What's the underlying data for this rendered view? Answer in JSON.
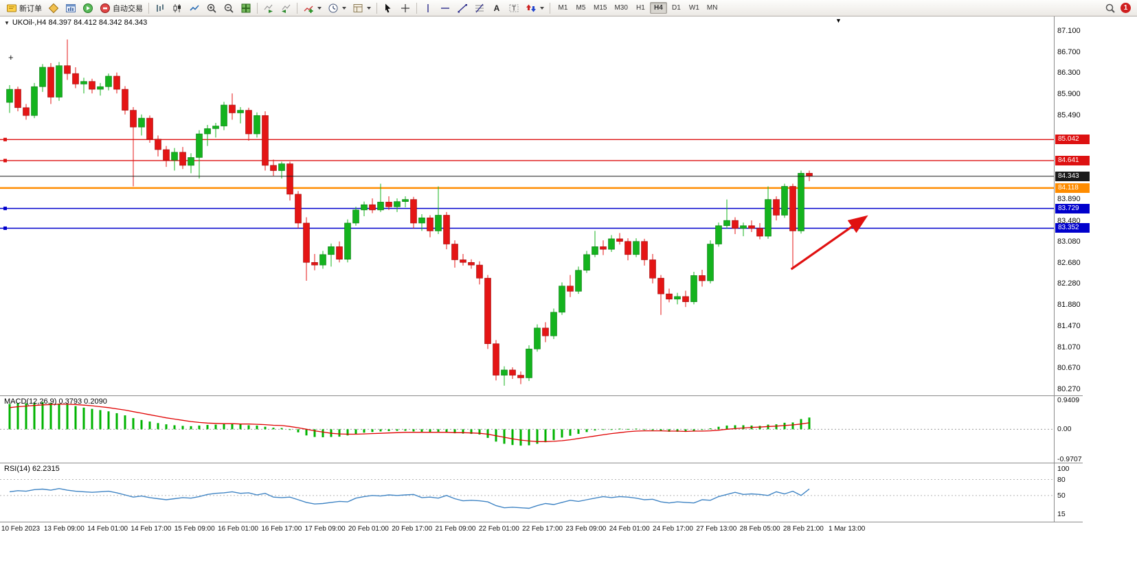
{
  "window": {
    "notification_count": "1"
  },
  "toolbar": {
    "buttons": [
      {
        "name": "new-order-button",
        "icon": "new-order",
        "label": "新订单"
      },
      {
        "name": "market-watch-button",
        "icon": "market-watch"
      },
      {
        "name": "new-chart-button",
        "icon": "new-chart"
      },
      {
        "name": "navigator-button",
        "icon": "navigator"
      },
      {
        "name": "auto-trading-button",
        "icon": "auto-trading",
        "label": "自动交易"
      },
      {
        "sep": true
      },
      {
        "name": "bar-chart-button",
        "icon": "bars"
      },
      {
        "name": "candlestick-chart-button",
        "icon": "candles"
      },
      {
        "name": "line-chart-button",
        "icon": "line"
      },
      {
        "name": "zoom-in-button",
        "icon": "zoom-in"
      },
      {
        "name": "zoom-out-button",
        "icon": "zoom-out"
      },
      {
        "name": "tile-windows-button",
        "icon": "tile"
      },
      {
        "sep": true
      },
      {
        "name": "auto-scroll-button",
        "icon": "auto-scroll"
      },
      {
        "name": "chart-shift-button",
        "icon": "chart-shift"
      },
      {
        "sep": true
      },
      {
        "name": "indicators-button",
        "icon": "indicators",
        "dropdown": true
      },
      {
        "name": "periods-button",
        "icon": "clock",
        "dropdown": true
      },
      {
        "name": "templates-button",
        "icon": "template",
        "dropdown": true
      },
      {
        "sep": true
      },
      {
        "name": "cursor-button",
        "icon": "cursor"
      },
      {
        "name": "crosshair-button",
        "icon": "crosshair"
      },
      {
        "sep": true
      },
      {
        "name": "vertical-line-button",
        "icon": "vline"
      },
      {
        "name": "horizontal-line-button",
        "icon": "hline"
      },
      {
        "name": "trendline-button",
        "icon": "trendline"
      },
      {
        "name": "fibonacci-button",
        "icon": "fibo"
      },
      {
        "name": "text-button",
        "icon": "text"
      },
      {
        "name": "label-button",
        "icon": "label"
      },
      {
        "name": "arrows-button",
        "icon": "arrows",
        "dropdown": true
      },
      {
        "sep": true
      }
    ],
    "timeframes": {
      "items": [
        "M1",
        "M5",
        "M15",
        "M30",
        "H1",
        "H4",
        "D1",
        "W1",
        "MN"
      ],
      "active": "H4"
    }
  },
  "chart": {
    "legend": "UKOil-,H4  84.397 84.412 84.342 84.343",
    "macd_label": "MACD(12,26,9) 0.3793 0.2090",
    "rsi_label": "RSI(14) 62.2315",
    "menu_arrow": "▼",
    "chart_dropdown_arrow": "▼",
    "cross_marker": "+"
  },
  "chart_data": {
    "type": "candlestick",
    "symbol": "UKOil-",
    "timeframe": "H4",
    "ohlc_current": {
      "open": 84.397,
      "high": 84.412,
      "low": 84.342,
      "close": 84.343
    },
    "colors": {
      "up": "#14b31e",
      "up_border": "#0a7a12",
      "down": "#e41515",
      "down_border": "#9c0b0b",
      "macd_histogram": "#00b300",
      "macd_signal": "#e00000",
      "rsi_line": "#3f84c4",
      "current_price": "#1a1a1a",
      "resistance": "#dd1111",
      "pivot": "#ff8c00",
      "support": "#0000cc",
      "arrow": "#e01010"
    },
    "y_axis": {
      "min": 80.27,
      "max": 87.1,
      "ticks": [
        {
          "label": "87.100",
          "value": 87.1
        },
        {
          "label": "86.700",
          "value": 86.7
        },
        {
          "label": "86.300",
          "value": 86.3
        },
        {
          "label": "85.900",
          "value": 85.9
        },
        {
          "label": "85.490",
          "value": 85.49
        },
        {
          "label": "83.890",
          "value": 83.89
        },
        {
          "label": "83.480",
          "value": 83.48
        },
        {
          "label": "83.080",
          "value": 83.08
        },
        {
          "label": "82.680",
          "value": 82.68
        },
        {
          "label": "82.280",
          "value": 82.28
        },
        {
          "label": "81.880",
          "value": 81.88
        },
        {
          "label": "81.470",
          "value": 81.47
        },
        {
          "label": "81.070",
          "value": 81.07
        },
        {
          "label": "80.670",
          "value": 80.67
        },
        {
          "label": "80.270",
          "value": 80.27
        }
      ]
    },
    "x_axis": {
      "labels": [
        "10 Feb 2023",
        "13 Feb 09:00",
        "14 Feb 01:00",
        "14 Feb 17:00",
        "15 Feb 09:00",
        "16 Feb 01:00",
        "16 Feb 17:00",
        "17 Feb 09:00",
        "20 Feb 01:00",
        "20 Feb 17:00",
        "21 Feb 09:00",
        "22 Feb 01:00",
        "22 Feb 17:00",
        "23 Feb 09:00",
        "24 Feb 01:00",
        "24 Feb 17:00",
        "27 Feb 13:00",
        "28 Feb 05:00",
        "28 Feb 21:00",
        "1 Mar 13:00"
      ]
    },
    "price_lines": [
      {
        "name": "resistance-line-1",
        "value": 85.042,
        "label": "85.042",
        "color": "#dd1111",
        "width": 1.3,
        "handle": true
      },
      {
        "name": "resistance-line-2",
        "value": 84.641,
        "label": "84.641",
        "color": "#dd1111",
        "width": 1.3,
        "handle": true
      },
      {
        "name": "pivot-line",
        "value": 84.118,
        "label": "84.118",
        "color": "#ff8c00",
        "width": 2.5,
        "handle": false
      },
      {
        "name": "support-line-1",
        "value": 83.729,
        "label": "83.729",
        "color": "#0000cc",
        "width": 1.5,
        "handle": true
      },
      {
        "name": "support-line-2",
        "value": 83.352,
        "label": "83.352",
        "color": "#0000cc",
        "width": 1.5,
        "handle": true
      },
      {
        "name": "current-price-line",
        "value": 84.343,
        "label": "84.343",
        "color": "#1a1a1a",
        "width": 1,
        "handle": false,
        "above": true
      }
    ],
    "candles": [
      [
        85.75,
        86.08,
        85.55,
        86.0
      ],
      [
        86.0,
        86.05,
        85.58,
        85.65
      ],
      [
        85.65,
        85.72,
        85.42,
        85.5
      ],
      [
        85.5,
        86.12,
        85.45,
        86.05
      ],
      [
        86.05,
        86.48,
        85.95,
        86.42
      ],
      [
        86.42,
        86.5,
        85.72,
        85.85
      ],
      [
        85.85,
        86.52,
        85.78,
        86.45
      ],
      [
        86.45,
        86.95,
        86.18,
        86.3
      ],
      [
        86.3,
        86.42,
        86.02,
        86.1
      ],
      [
        86.1,
        86.22,
        85.92,
        86.15
      ],
      [
        86.15,
        86.2,
        85.92,
        86.0
      ],
      [
        86.0,
        86.12,
        85.88,
        86.05
      ],
      [
        86.05,
        86.3,
        85.98,
        86.25
      ],
      [
        86.25,
        86.32,
        85.92,
        86.0
      ],
      [
        86.0,
        86.06,
        85.52,
        85.6
      ],
      [
        85.6,
        85.66,
        84.15,
        85.28
      ],
      [
        85.28,
        85.52,
        85.12,
        85.45
      ],
      [
        85.45,
        85.5,
        84.98,
        85.05
      ],
      [
        85.05,
        85.12,
        84.72,
        84.85
      ],
      [
        84.85,
        84.92,
        84.52,
        84.65
      ],
      [
        84.65,
        84.88,
        84.45,
        84.8
      ],
      [
        84.8,
        84.9,
        84.48,
        84.55
      ],
      [
        84.55,
        84.78,
        84.4,
        84.7
      ],
      [
        84.7,
        85.22,
        84.3,
        85.15
      ],
      [
        85.15,
        85.32,
        84.92,
        85.25
      ],
      [
        85.25,
        85.36,
        85.08,
        85.3
      ],
      [
        85.3,
        85.76,
        85.22,
        85.7
      ],
      [
        85.7,
        85.92,
        85.42,
        85.55
      ],
      [
        85.55,
        85.66,
        85.35,
        85.6
      ],
      [
        85.6,
        85.65,
        85.02,
        85.15
      ],
      [
        85.15,
        85.56,
        85.08,
        85.5
      ],
      [
        85.5,
        85.58,
        84.45,
        84.55
      ],
      [
        84.55,
        84.66,
        84.35,
        84.45
      ],
      [
        84.45,
        84.62,
        84.3,
        84.58
      ],
      [
        84.58,
        84.62,
        83.88,
        84.0
      ],
      [
        84.0,
        84.06,
        83.35,
        83.45
      ],
      [
        83.45,
        83.56,
        82.35,
        82.7
      ],
      [
        82.7,
        82.86,
        82.55,
        82.65
      ],
      [
        82.65,
        82.92,
        82.58,
        82.85
      ],
      [
        82.85,
        83.06,
        82.62,
        83.0
      ],
      [
        83.0,
        83.1,
        82.7,
        82.76
      ],
      [
        82.76,
        83.52,
        82.7,
        83.45
      ],
      [
        83.45,
        83.76,
        83.4,
        83.7
      ],
      [
        83.7,
        83.86,
        83.58,
        83.8
      ],
      [
        83.8,
        83.92,
        83.64,
        83.7
      ],
      [
        83.7,
        84.2,
        83.66,
        83.85
      ],
      [
        83.85,
        83.96,
        83.7,
        83.76
      ],
      [
        83.76,
        83.92,
        83.66,
        83.86
      ],
      [
        83.86,
        83.96,
        83.75,
        83.9
      ],
      [
        83.9,
        83.95,
        83.35,
        83.45
      ],
      [
        83.45,
        83.62,
        83.3,
        83.55
      ],
      [
        83.55,
        83.6,
        83.18,
        83.3
      ],
      [
        83.3,
        84.15,
        83.24,
        83.6
      ],
      [
        83.6,
        83.66,
        82.95,
        83.05
      ],
      [
        83.05,
        83.12,
        82.6,
        82.75
      ],
      [
        82.75,
        82.86,
        82.64,
        82.7
      ],
      [
        82.7,
        82.76,
        82.58,
        82.65
      ],
      [
        82.65,
        82.72,
        82.28,
        82.4
      ],
      [
        82.4,
        82.46,
        81.05,
        81.15
      ],
      [
        81.15,
        81.22,
        80.45,
        80.55
      ],
      [
        80.55,
        80.72,
        80.35,
        80.65
      ],
      [
        80.65,
        80.7,
        80.48,
        80.55
      ],
      [
        80.55,
        80.62,
        80.38,
        80.5
      ],
      [
        80.5,
        81.12,
        80.44,
        81.05
      ],
      [
        81.05,
        81.52,
        81.0,
        81.45
      ],
      [
        81.45,
        81.56,
        81.18,
        81.3
      ],
      [
        81.3,
        81.82,
        81.24,
        81.75
      ],
      [
        81.75,
        82.32,
        81.7,
        82.25
      ],
      [
        82.25,
        82.46,
        82.04,
        82.15
      ],
      [
        82.15,
        82.62,
        82.1,
        82.55
      ],
      [
        82.55,
        82.92,
        82.5,
        82.85
      ],
      [
        82.85,
        83.3,
        82.8,
        83.0
      ],
      [
        83.0,
        83.12,
        82.84,
        82.95
      ],
      [
        82.95,
        83.22,
        82.9,
        83.15
      ],
      [
        83.15,
        83.26,
        83.04,
        83.1
      ],
      [
        83.1,
        83.16,
        82.74,
        82.85
      ],
      [
        82.85,
        83.16,
        82.8,
        83.1
      ],
      [
        83.1,
        83.15,
        82.64,
        82.75
      ],
      [
        82.75,
        82.86,
        82.3,
        82.4
      ],
      [
        82.4,
        82.46,
        81.7,
        82.1
      ],
      [
        82.1,
        82.2,
        81.94,
        82.0
      ],
      [
        82.0,
        82.12,
        81.9,
        82.05
      ],
      [
        82.05,
        82.16,
        81.85,
        81.95
      ],
      [
        81.95,
        82.52,
        81.9,
        82.45
      ],
      [
        82.45,
        82.56,
        82.24,
        82.35
      ],
      [
        82.35,
        83.12,
        82.3,
        83.05
      ],
      [
        83.05,
        83.46,
        83.0,
        83.4
      ],
      [
        83.4,
        83.9,
        83.34,
        83.5
      ],
      [
        83.5,
        83.56,
        83.24,
        83.35
      ],
      [
        83.35,
        83.46,
        83.2,
        83.4
      ],
      [
        83.4,
        83.5,
        83.28,
        83.35
      ],
      [
        83.35,
        83.45,
        83.14,
        83.2
      ],
      [
        83.2,
        84.15,
        83.15,
        83.9
      ],
      [
        83.9,
        83.96,
        83.5,
        83.6
      ],
      [
        83.6,
        84.2,
        83.55,
        84.15
      ],
      [
        84.15,
        84.2,
        82.6,
        83.3
      ],
      [
        83.3,
        84.45,
        83.25,
        84.4
      ],
      [
        84.4,
        84.45,
        84.25,
        84.343
      ]
    ],
    "annotations": [
      {
        "type": "arrow",
        "from": {
          "index": 94.8,
          "price": 82.57
        },
        "to": {
          "index": 103.7,
          "price": 83.55
        },
        "color": "#e01010"
      }
    ],
    "indicators": {
      "macd": {
        "params": "12,26,9",
        "current_macd": 0.3793,
        "current_signal": 0.209,
        "scale": {
          "max": 0.9409,
          "mid": 0.0,
          "min": -0.9707
        },
        "axis_labels": [
          "0.9409",
          "0.00",
          "-0.9707"
        ],
        "histogram": [
          0.82,
          0.85,
          0.84,
          0.86,
          0.88,
          0.85,
          0.83,
          0.8,
          0.75,
          0.7,
          0.66,
          0.62,
          0.58,
          0.52,
          0.45,
          0.36,
          0.3,
          0.25,
          0.2,
          0.16,
          0.13,
          0.11,
          0.1,
          0.12,
          0.14,
          0.15,
          0.17,
          0.17,
          0.16,
          0.13,
          0.12,
          0.08,
          0.05,
          0.04,
          -0.02,
          -0.1,
          -0.2,
          -0.25,
          -0.26,
          -0.25,
          -0.24,
          -0.2,
          -0.15,
          -0.11,
          -0.09,
          -0.07,
          -0.06,
          -0.05,
          -0.05,
          -0.07,
          -0.08,
          -0.09,
          -0.08,
          -0.1,
          -0.13,
          -0.14,
          -0.15,
          -0.17,
          -0.28,
          -0.4,
          -0.47,
          -0.51,
          -0.53,
          -0.52,
          -0.47,
          -0.42,
          -0.35,
          -0.27,
          -0.21,
          -0.15,
          -0.09,
          -0.04,
          -0.02,
          0.0,
          0.02,
          0.01,
          0.02,
          0.0,
          -0.03,
          -0.06,
          -0.08,
          -0.08,
          -0.07,
          -0.05,
          -0.02,
          0.03,
          0.08,
          0.12,
          0.13,
          0.13,
          0.12,
          0.11,
          0.15,
          0.16,
          0.21,
          0.22,
          0.33,
          0.3793
        ],
        "signal": [
          0.7,
          0.73,
          0.75,
          0.77,
          0.79,
          0.8,
          0.81,
          0.81,
          0.8,
          0.78,
          0.76,
          0.73,
          0.7,
          0.66,
          0.62,
          0.57,
          0.52,
          0.47,
          0.42,
          0.37,
          0.33,
          0.29,
          0.25,
          0.22,
          0.2,
          0.19,
          0.18,
          0.18,
          0.17,
          0.17,
          0.16,
          0.15,
          0.13,
          0.12,
          0.09,
          0.05,
          0.0,
          -0.05,
          -0.09,
          -0.13,
          -0.15,
          -0.16,
          -0.16,
          -0.15,
          -0.14,
          -0.13,
          -0.12,
          -0.11,
          -0.1,
          -0.1,
          -0.1,
          -0.1,
          -0.1,
          -0.1,
          -0.11,
          -0.11,
          -0.12,
          -0.13,
          -0.16,
          -0.21,
          -0.26,
          -0.31,
          -0.35,
          -0.38,
          -0.4,
          -0.4,
          -0.39,
          -0.37,
          -0.34,
          -0.3,
          -0.26,
          -0.22,
          -0.18,
          -0.14,
          -0.11,
          -0.08,
          -0.06,
          -0.05,
          -0.05,
          -0.05,
          -0.06,
          -0.06,
          -0.07,
          -0.06,
          -0.06,
          -0.05,
          -0.03,
          0.0,
          0.02,
          0.04,
          0.06,
          0.07,
          0.09,
          0.1,
          0.12,
          0.14,
          0.17,
          0.209
        ]
      },
      "rsi": {
        "period": 14,
        "current": 62.2315,
        "axis_labels": [
          "100",
          "80",
          "50",
          "15"
        ],
        "axis_values": [
          100,
          80,
          50,
          15
        ],
        "levels": [
          80,
          50
        ],
        "values": [
          57,
          59,
          58,
          61,
          62,
          60,
          63,
          60,
          58,
          57,
          56,
          57,
          58,
          55,
          51,
          47,
          49,
          46,
          44,
          42,
          44,
          46,
          45,
          48,
          52,
          54,
          55,
          57,
          54,
          55,
          51,
          54,
          47,
          46,
          47,
          42,
          37,
          34,
          35,
          37,
          39,
          38,
          45,
          48,
          50,
          49,
          51,
          50,
          51,
          52,
          46,
          47,
          45,
          50,
          44,
          40,
          41,
          40,
          38,
          31,
          27,
          28,
          27,
          26,
          31,
          35,
          33,
          37,
          41,
          39,
          42,
          45,
          48,
          46,
          48,
          47,
          45,
          42,
          43,
          38,
          36,
          38,
          37,
          36,
          42,
          41,
          48,
          52,
          56,
          52,
          53,
          52,
          50,
          57,
          53,
          58,
          50,
          62.2315
        ]
      }
    }
  }
}
